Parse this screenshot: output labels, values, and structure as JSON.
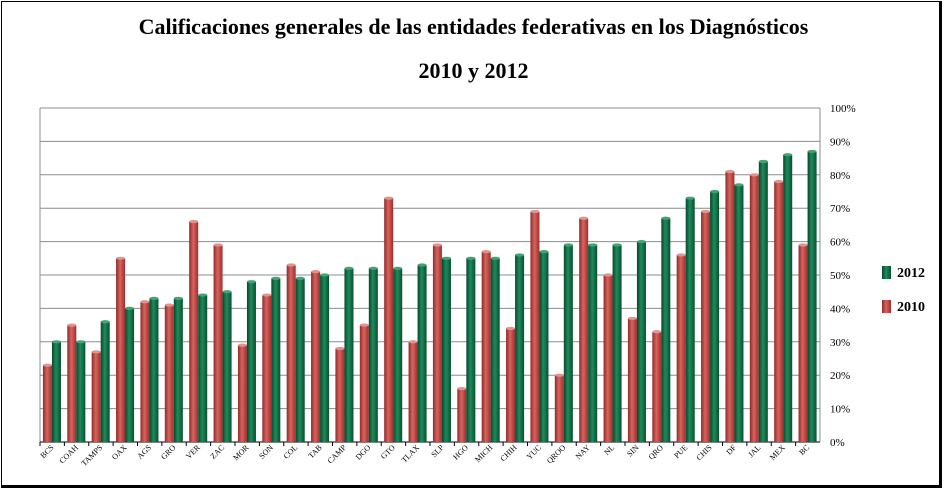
{
  "chart_data": {
    "type": "bar",
    "title": "Calificaciones generales de las entidades federativas en los Diagnósticos",
    "subtitle": "2010 y 2012",
    "categories": [
      "BCS",
      "COAH",
      "TAMPS",
      "OAX",
      "AGS",
      "GRO",
      "VER",
      "ZAC",
      "MOR",
      "SON",
      "COL",
      "TAB",
      "CAMP",
      "DGO",
      "GTO",
      "TLAX",
      "SLP",
      "HGO",
      "MICH",
      "CHIH",
      "YUC",
      "QROO",
      "NAY",
      "NL",
      "SIN",
      "QRO",
      "PUE",
      "CHIS",
      "DF",
      "JAL",
      "MEX",
      "BC"
    ],
    "series": [
      {
        "name": "2010",
        "color": "#c0504d",
        "values": [
          23,
          35,
          27,
          55,
          42,
          41,
          66,
          59,
          29,
          44,
          53,
          51,
          28,
          35,
          73,
          30,
          59,
          16,
          57,
          34,
          69,
          20,
          67,
          50,
          37,
          33,
          56,
          69,
          81,
          80,
          78,
          59
        ]
      },
      {
        "name": "2012",
        "color": "#0e6b45",
        "values": [
          30,
          30,
          36,
          40,
          43,
          43,
          44,
          45,
          48,
          49,
          49,
          50,
          52,
          52,
          52,
          53,
          55,
          55,
          55,
          56,
          57,
          59,
          59,
          59,
          60,
          67,
          73,
          75,
          77,
          84,
          86,
          87
        ]
      }
    ],
    "ylim": [
      0,
      100
    ],
    "yticks": [
      "0%",
      "10%",
      "20%",
      "30%",
      "40%",
      "50%",
      "60%",
      "70%",
      "80%",
      "90%",
      "100%"
    ],
    "ylabel": "",
    "xlabel": "",
    "grid": true,
    "legend_position": "right",
    "legend": [
      {
        "label": "2012",
        "color": "#0e6b45"
      },
      {
        "label": "2010",
        "color": "#c0504d"
      }
    ]
  }
}
